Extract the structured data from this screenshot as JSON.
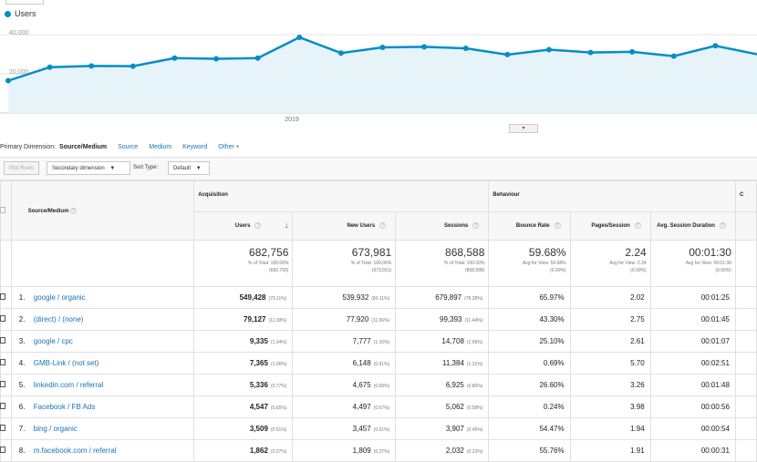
{
  "legend": {
    "label": "Users",
    "color": "#058dc7"
  },
  "chart_data": {
    "type": "area",
    "series": [
      {
        "name": "Users",
        "values": [
          16500,
          23400,
          24000,
          23900,
          28000,
          27700,
          28000,
          38600,
          30600,
          33500,
          33800,
          33000,
          29800,
          32300,
          30900,
          31200,
          29000,
          34300,
          30000
        ]
      }
    ],
    "ylim": [
      0,
      40000
    ],
    "yticks": [
      "40,000",
      "20,000"
    ],
    "xlabel": "2019"
  },
  "dimensions": {
    "label": "Primary Dimension:",
    "active": "Source/Medium",
    "options": [
      "Source",
      "Medium",
      "Keyword",
      "Other"
    ]
  },
  "toolbar": {
    "plot_rows": "Plot Rows",
    "secondary": "Secondary dimension",
    "sort_label": "Sort Type:",
    "sort_value": "Default"
  },
  "headers": {
    "source_medium": "Source/Medium",
    "acquisition": "Acquisition",
    "behaviour": "Behaviour",
    "conversions_partial": "C",
    "users": "Users",
    "new_users": "New Users",
    "sessions": "Sessions",
    "bounce_rate": "Bounce Rate",
    "pages_session": "Pages/Session",
    "avg_duration": "Avg. Session Duration"
  },
  "totals": {
    "users": {
      "value": "682,756",
      "line1": "% of Total: 100.00%",
      "line2": "(682,756)"
    },
    "new_users": {
      "value": "673,981",
      "line1": "% of Total: 100.06%",
      "line2": "(673,551)"
    },
    "sessions": {
      "value": "868,588",
      "line1": "% of Total: 100.00%",
      "line2": "(868,588)"
    },
    "bounce_rate": {
      "value": "59.68%",
      "line1": "Avg for View: 59.68%",
      "line2": "(0.00%)"
    },
    "pages_session": {
      "value": "2.24",
      "line1": "Avg for View: 2.24",
      "line2": "(0.00%)"
    },
    "avg_duration": {
      "value": "00:01:30",
      "line1": "Avg for View: 00:01:30",
      "line2": "(0.00%)"
    }
  },
  "rows": [
    {
      "idx": "1.",
      "source": "google / organic",
      "users": "549,428",
      "users_pct": "(79.11%)",
      "new_users": "539,932",
      "new_pct": "(80.11%)",
      "sessions": "679,897",
      "sess_pct": "(78.28%)",
      "bounce": "65.97%",
      "pages": "2.02",
      "duration": "00:01:25"
    },
    {
      "idx": "2.",
      "source": "(direct) / (none)",
      "users": "79,127",
      "users_pct": "(11.39%)",
      "new_users": "77,920",
      "new_pct": "(11.56%)",
      "sessions": "99,393",
      "sess_pct": "(11.44%)",
      "bounce": "43.30%",
      "pages": "2.75",
      "duration": "00:01:45"
    },
    {
      "idx": "3.",
      "source": "google / cpc",
      "users": "9,335",
      "users_pct": "(1.34%)",
      "new_users": "7,777",
      "new_pct": "(1.15%)",
      "sessions": "14,708",
      "sess_pct": "(1.69%)",
      "bounce": "25.10%",
      "pages": "2.61",
      "duration": "00:01:07"
    },
    {
      "idx": "4.",
      "source": "GMB-Link / (not set)",
      "users": "7,365",
      "users_pct": "(1.06%)",
      "new_users": "6,148",
      "new_pct": "(0.91%)",
      "sessions": "11,384",
      "sess_pct": "(1.31%)",
      "bounce": "0.69%",
      "pages": "5.70",
      "duration": "00:02:51"
    },
    {
      "idx": "5.",
      "source": "linkedin.com / referral",
      "users": "5,336",
      "users_pct": "(0.77%)",
      "new_users": "4,675",
      "new_pct": "(0.69%)",
      "sessions": "6,925",
      "sess_pct": "(0.80%)",
      "bounce": "26.60%",
      "pages": "3.26",
      "duration": "00:01:48"
    },
    {
      "idx": "6.",
      "source": "Facebook / FB Ads",
      "users": "4,547",
      "users_pct": "(0.65%)",
      "new_users": "4,497",
      "new_pct": "(0.67%)",
      "sessions": "5,062",
      "sess_pct": "(0.58%)",
      "bounce": "0.24%",
      "pages": "3.98",
      "duration": "00:00:56"
    },
    {
      "idx": "7.",
      "source": "bing / organic",
      "users": "3,509",
      "users_pct": "(0.51%)",
      "new_users": "3,457",
      "new_pct": "(0.51%)",
      "sessions": "3,907",
      "sess_pct": "(0.45%)",
      "bounce": "54.47%",
      "pages": "1.94",
      "duration": "00:00:54"
    },
    {
      "idx": "8.",
      "source": "m.facebook.com / referral",
      "users": "1,862",
      "users_pct": "(0.27%)",
      "new_users": "1,809",
      "new_pct": "(0.27%)",
      "sessions": "2,032",
      "sess_pct": "(0.23%)",
      "bounce": "55.76%",
      "pages": "1.91",
      "duration": "00:00:31"
    }
  ]
}
